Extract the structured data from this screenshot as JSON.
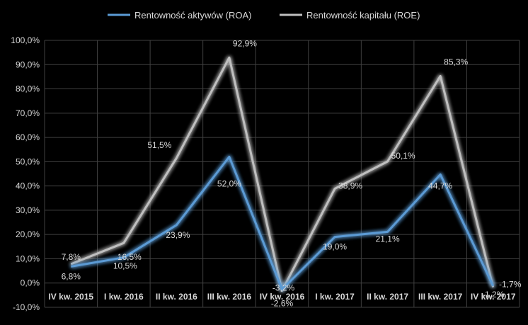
{
  "chart_data": {
    "type": "line",
    "categories": [
      "IV kw. 2015",
      "I kw. 2016",
      "II kw. 2016",
      "III kw. 2016",
      "IV kw. 2016",
      "I kw. 2017",
      "II kw. 2017",
      "III kw. 2017",
      "IV kw. 2017"
    ],
    "series": [
      {
        "name": "Rentowność aktywów (ROA)",
        "color": "#5b9bd5",
        "values": [
          6.8,
          10.5,
          23.9,
          52.0,
          -2.6,
          19.0,
          21.1,
          44.7,
          -1.2
        ],
        "labels": [
          "6,8%",
          "10,5%",
          "23,9%",
          "52,0%",
          "-2,6%",
          "19,0%",
          "21,1%",
          "44,7%",
          "-1,2%"
        ]
      },
      {
        "name": "Rentowność kapitału (ROE)",
        "color": "#bfbfbf",
        "values": [
          7.8,
          16.5,
          51.5,
          92.9,
          -3.2,
          38.9,
          50.1,
          85.3,
          -1.7
        ],
        "labels": [
          "7,8%",
          "16,5%",
          "51,5%",
          "92,9%",
          "-3,2%",
          "38,9%",
          "50,1%",
          "85,3%",
          "-1,7%"
        ]
      }
    ],
    "y_ticks": [
      "-10,0%",
      "0,0%",
      "10,0%",
      "20,0%",
      "30,0%",
      "40,0%",
      "50,0%",
      "60,0%",
      "70,0%",
      "80,0%",
      "90,0%",
      "100,0%"
    ],
    "ylim": [
      -10,
      100
    ],
    "grid": true,
    "legend_position": "top",
    "background": "#000000",
    "grid_color": "#404040",
    "text_color": "#d9d9d9"
  }
}
